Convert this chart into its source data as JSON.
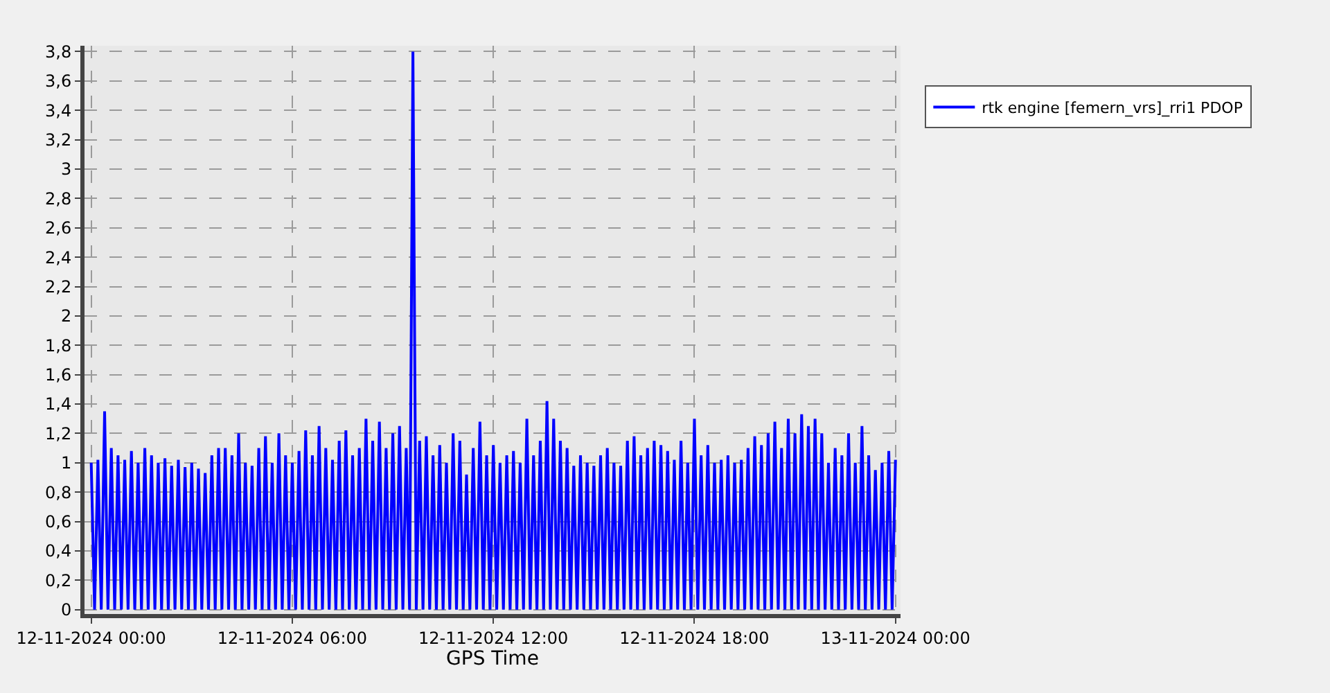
{
  "chart_data": {
    "type": "line",
    "xlabel": "GPS Time",
    "legend": "top right",
    "grid": true,
    "marker": "none",
    "line_style": "solid",
    "xlim": [
      "2024-11-11T23:48",
      "2024-11-13T00:09"
    ],
    "ylim": [
      -0.03,
      3.84
    ],
    "xticks": [
      {
        "value": "2024-11-12T00:00",
        "label": "12-11-2024 00:00"
      },
      {
        "value": "2024-11-12T06:00",
        "label": "12-11-2024 06:00"
      },
      {
        "value": "2024-11-12T12:00",
        "label": "12-11-2024 12:00"
      },
      {
        "value": "2024-11-12T18:00",
        "label": "12-11-2024 18:00"
      },
      {
        "value": "2024-11-13T00:00",
        "label": "13-11-2024 00:00"
      }
    ],
    "yticks": [
      0,
      {
        "value": 0.2,
        "label": "0,2"
      },
      {
        "value": 0.4,
        "label": "0,4"
      },
      {
        "value": 0.6,
        "label": "0,6"
      },
      {
        "value": 0.8,
        "label": "0,8"
      },
      1,
      {
        "value": 1.2,
        "label": "1,2"
      },
      {
        "value": 1.4,
        "label": "1,4"
      },
      {
        "value": 1.6,
        "label": "1,6"
      },
      {
        "value": 1.8,
        "label": "1,8"
      },
      2,
      {
        "value": 2.2,
        "label": "2,2"
      },
      {
        "value": 2.4,
        "label": "2,4"
      },
      {
        "value": 2.6,
        "label": "2,6"
      },
      {
        "value": 2.8,
        "label": "2,8"
      },
      3,
      {
        "value": 3.2,
        "label": "3,2"
      },
      {
        "value": 3.4,
        "label": "3,4"
      },
      {
        "value": 3.6,
        "label": "3,6"
      },
      {
        "value": 3.8,
        "label": "3,8"
      }
    ],
    "x": [
      "2024-11-12T00:00",
      "2024-11-12T00:06",
      "2024-11-12T00:12",
      "2024-11-12T00:18",
      "2024-11-12T00:24",
      "2024-11-12T00:30",
      "2024-11-12T00:36",
      "2024-11-12T00:42",
      "2024-11-12T00:48",
      "2024-11-12T00:54",
      "2024-11-12T01:00",
      "2024-11-12T01:06",
      "2024-11-12T01:12",
      "2024-11-12T01:18",
      "2024-11-12T01:24",
      "2024-11-12T01:30",
      "2024-11-12T01:36",
      "2024-11-12T01:42",
      "2024-11-12T01:48",
      "2024-11-12T01:54",
      "2024-11-12T02:00",
      "2024-11-12T02:06",
      "2024-11-12T02:12",
      "2024-11-12T02:18",
      "2024-11-12T02:24",
      "2024-11-12T02:30",
      "2024-11-12T02:36",
      "2024-11-12T02:42",
      "2024-11-12T02:48",
      "2024-11-12T02:54",
      "2024-11-12T03:00",
      "2024-11-12T03:06",
      "2024-11-12T03:12",
      "2024-11-12T03:18",
      "2024-11-12T03:24",
      "2024-11-12T03:30",
      "2024-11-12T03:36",
      "2024-11-12T03:42",
      "2024-11-12T03:48",
      "2024-11-12T03:54",
      "2024-11-12T04:00",
      "2024-11-12T04:06",
      "2024-11-12T04:12",
      "2024-11-12T04:18",
      "2024-11-12T04:24",
      "2024-11-12T04:30",
      "2024-11-12T04:36",
      "2024-11-12T04:42",
      "2024-11-12T04:48",
      "2024-11-12T04:54",
      "2024-11-12T05:00",
      "2024-11-12T05:06",
      "2024-11-12T05:12",
      "2024-11-12T05:18",
      "2024-11-12T05:24",
      "2024-11-12T05:30",
      "2024-11-12T05:36",
      "2024-11-12T05:42",
      "2024-11-12T05:48",
      "2024-11-12T05:54",
      "2024-11-12T06:00",
      "2024-11-12T06:06",
      "2024-11-12T06:12",
      "2024-11-12T06:18",
      "2024-11-12T06:24",
      "2024-11-12T06:30",
      "2024-11-12T06:36",
      "2024-11-12T06:42",
      "2024-11-12T06:48",
      "2024-11-12T06:54",
      "2024-11-12T07:00",
      "2024-11-12T07:06",
      "2024-11-12T07:12",
      "2024-11-12T07:18",
      "2024-11-12T07:24",
      "2024-11-12T07:30",
      "2024-11-12T07:36",
      "2024-11-12T07:42",
      "2024-11-12T07:48",
      "2024-11-12T07:54",
      "2024-11-12T08:00",
      "2024-11-12T08:06",
      "2024-11-12T08:12",
      "2024-11-12T08:18",
      "2024-11-12T08:24",
      "2024-11-12T08:30",
      "2024-11-12T08:36",
      "2024-11-12T08:42",
      "2024-11-12T08:48",
      "2024-11-12T08:54",
      "2024-11-12T09:00",
      "2024-11-12T09:06",
      "2024-11-12T09:12",
      "2024-11-12T09:18",
      "2024-11-12T09:24",
      "2024-11-12T09:30",
      "2024-11-12T09:36",
      "2024-11-12T09:42",
      "2024-11-12T09:48",
      "2024-11-12T09:54",
      "2024-11-12T10:00",
      "2024-11-12T10:06",
      "2024-11-12T10:12",
      "2024-11-12T10:18",
      "2024-11-12T10:24",
      "2024-11-12T10:30",
      "2024-11-12T10:36",
      "2024-11-12T10:42",
      "2024-11-12T10:48",
      "2024-11-12T10:54",
      "2024-11-12T11:00",
      "2024-11-12T11:06",
      "2024-11-12T11:12",
      "2024-11-12T11:18",
      "2024-11-12T11:24",
      "2024-11-12T11:30",
      "2024-11-12T11:36",
      "2024-11-12T11:42",
      "2024-11-12T11:48",
      "2024-11-12T11:54",
      "2024-11-12T12:00",
      "2024-11-12T12:06",
      "2024-11-12T12:12",
      "2024-11-12T12:18",
      "2024-11-12T12:24",
      "2024-11-12T12:30",
      "2024-11-12T12:36",
      "2024-11-12T12:42",
      "2024-11-12T12:48",
      "2024-11-12T12:54",
      "2024-11-12T13:00",
      "2024-11-12T13:06",
      "2024-11-12T13:12",
      "2024-11-12T13:18",
      "2024-11-12T13:24",
      "2024-11-12T13:30",
      "2024-11-12T13:36",
      "2024-11-12T13:42",
      "2024-11-12T13:48",
      "2024-11-12T13:54",
      "2024-11-12T14:00",
      "2024-11-12T14:06",
      "2024-11-12T14:12",
      "2024-11-12T14:18",
      "2024-11-12T14:24",
      "2024-11-12T14:30",
      "2024-11-12T14:36",
      "2024-11-12T14:42",
      "2024-11-12T14:48",
      "2024-11-12T14:54",
      "2024-11-12T15:00",
      "2024-11-12T15:06",
      "2024-11-12T15:12",
      "2024-11-12T15:18",
      "2024-11-12T15:24",
      "2024-11-12T15:30",
      "2024-11-12T15:36",
      "2024-11-12T15:42",
      "2024-11-12T15:48",
      "2024-11-12T15:54",
      "2024-11-12T16:00",
      "2024-11-12T16:06",
      "2024-11-12T16:12",
      "2024-11-12T16:18",
      "2024-11-12T16:24",
      "2024-11-12T16:30",
      "2024-11-12T16:36",
      "2024-11-12T16:42",
      "2024-11-12T16:48",
      "2024-11-12T16:54",
      "2024-11-12T17:00",
      "2024-11-12T17:06",
      "2024-11-12T17:12",
      "2024-11-12T17:18",
      "2024-11-12T17:24",
      "2024-11-12T17:30",
      "2024-11-12T17:36",
      "2024-11-12T17:42",
      "2024-11-12T17:48",
      "2024-11-12T17:54",
      "2024-11-12T18:00",
      "2024-11-12T18:06",
      "2024-11-12T18:12",
      "2024-11-12T18:18",
      "2024-11-12T18:24",
      "2024-11-12T18:30",
      "2024-11-12T18:36",
      "2024-11-12T18:42",
      "2024-11-12T18:48",
      "2024-11-12T18:54",
      "2024-11-12T19:00",
      "2024-11-12T19:06",
      "2024-11-12T19:12",
      "2024-11-12T19:18",
      "2024-11-12T19:24",
      "2024-11-12T19:30",
      "2024-11-12T19:36",
      "2024-11-12T19:42",
      "2024-11-12T19:48",
      "2024-11-12T19:54",
      "2024-11-12T20:00",
      "2024-11-12T20:06",
      "2024-11-12T20:12",
      "2024-11-12T20:18",
      "2024-11-12T20:24",
      "2024-11-12T20:30",
      "2024-11-12T20:36",
      "2024-11-12T20:42",
      "2024-11-12T20:48",
      "2024-11-12T20:54",
      "2024-11-12T21:00",
      "2024-11-12T21:06",
      "2024-11-12T21:12",
      "2024-11-12T21:18",
      "2024-11-12T21:24",
      "2024-11-12T21:30",
      "2024-11-12T21:36",
      "2024-11-12T21:42",
      "2024-11-12T21:48",
      "2024-11-12T21:54",
      "2024-11-12T22:00",
      "2024-11-12T22:06",
      "2024-11-12T22:12",
      "2024-11-12T22:18",
      "2024-11-12T22:24",
      "2024-11-12T22:30",
      "2024-11-12T22:36",
      "2024-11-12T22:42",
      "2024-11-12T22:48",
      "2024-11-12T22:54",
      "2024-11-12T23:00",
      "2024-11-12T23:06",
      "2024-11-12T23:12",
      "2024-11-12T23:18",
      "2024-11-12T23:24",
      "2024-11-12T23:30",
      "2024-11-12T23:36",
      "2024-11-12T23:42",
      "2024-11-12T23:48",
      "2024-11-12T23:54",
      "2024-11-13T00:00"
    ],
    "series": [
      {
        "name": "rtk engine [femern_vrs]_rri1 PDOP",
        "color": "#0000ff",
        "values": [
          1.0,
          0,
          1.02,
          0,
          1.35,
          0,
          1.1,
          0,
          1.05,
          0,
          1.02,
          0,
          1.08,
          0,
          1.0,
          0,
          1.1,
          0,
          1.05,
          0,
          1.0,
          0,
          1.03,
          0,
          0.98,
          0,
          1.02,
          0,
          0.97,
          0,
          1.0,
          0,
          0.96,
          0,
          0.93,
          0,
          1.05,
          0,
          1.1,
          0,
          1.1,
          0,
          1.05,
          0,
          1.2,
          0,
          1.0,
          0,
          0.98,
          0,
          1.1,
          0,
          1.18,
          0,
          1.0,
          0,
          1.2,
          0,
          1.05,
          0,
          1.0,
          0,
          1.08,
          0,
          1.22,
          0,
          1.05,
          0,
          1.25,
          0,
          1.1,
          0,
          1.02,
          0,
          1.15,
          0,
          1.22,
          0,
          1.05,
          0,
          1.1,
          0,
          1.3,
          0,
          1.15,
          0,
          1.28,
          0,
          1.1,
          0,
          1.2,
          0,
          1.25,
          0,
          1.1,
          0,
          3.8,
          0,
          1.15,
          0,
          1.18,
          0,
          1.05,
          0,
          1.12,
          0,
          1.0,
          0,
          1.2,
          0,
          1.15,
          0,
          0.92,
          0,
          1.1,
          0,
          1.28,
          0,
          1.05,
          0,
          1.12,
          0,
          1.0,
          0,
          1.05,
          0,
          1.08,
          0,
          1.0,
          0,
          1.3,
          0,
          1.05,
          0,
          1.15,
          0,
          1.42,
          0,
          1.3,
          0,
          1.15,
          0,
          1.1,
          0,
          0.98,
          0,
          1.05,
          0,
          1.0,
          0,
          0.98,
          0,
          1.05,
          0,
          1.1,
          0,
          1.0,
          0,
          0.98,
          0,
          1.15,
          0,
          1.18,
          0,
          1.05,
          0,
          1.1,
          0,
          1.15,
          0,
          1.12,
          0,
          1.08,
          0,
          1.02,
          0,
          1.15,
          0,
          1.0,
          0,
          1.3,
          0,
          1.05,
          0,
          1.12,
          0,
          1.0,
          0,
          1.02,
          0,
          1.05,
          0,
          1.0,
          0,
          1.02,
          0,
          1.1,
          0,
          1.18,
          0,
          1.12,
          0,
          1.2,
          0,
          1.28,
          0,
          1.1,
          0,
          1.3,
          0,
          1.2,
          0,
          1.33,
          0,
          1.25,
          0,
          1.3,
          0,
          1.2,
          0,
          1.0,
          0,
          1.1,
          0,
          1.05,
          0,
          1.2,
          0,
          1.0,
          0,
          1.25,
          0,
          1.05,
          0,
          0.95,
          0,
          1.0,
          0,
          1.08,
          0,
          1.02
        ]
      }
    ]
  }
}
